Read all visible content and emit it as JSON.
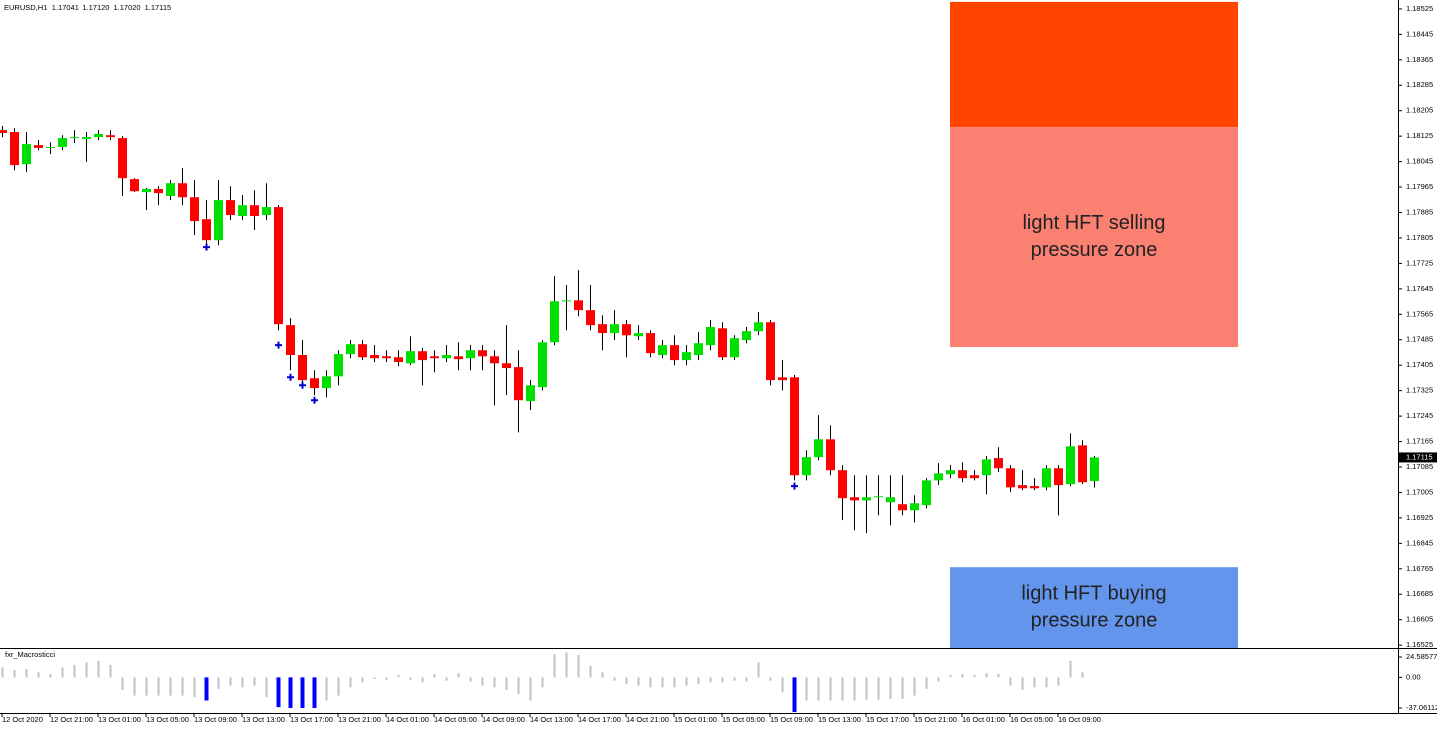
{
  "chart_data": [
    {
      "type": "candlestick",
      "header": {
        "symbol": "EURUSD,H1",
        "ohlc_labels": [
          "1.17041",
          "1.17120",
          "1.17020",
          "1.17115"
        ]
      },
      "categories": [
        "12 Oct 2020",
        null,
        null,
        null,
        "12 Oct 21:00",
        null,
        null,
        null,
        "13 Oct 01:00",
        null,
        null,
        null,
        "13 Oct 05:00",
        null,
        null,
        null,
        "13 Oct 09:00",
        null,
        null,
        null,
        "13 Oct 13:00",
        null,
        null,
        null,
        "13 Oct 17:00",
        null,
        null,
        null,
        "13 Oct 21:00",
        null,
        null,
        null,
        "14 Oct 01:00",
        null,
        null,
        null,
        "14 Oct 05:00",
        null,
        null,
        null,
        "14 Oct 09:00",
        null,
        null,
        null,
        "14 Oct 13:00",
        null,
        null,
        null,
        "14 Oct 17:00",
        null,
        null,
        null,
        "14 Oct 21:00",
        null,
        null,
        null,
        "15 Oct 01:00",
        null,
        null,
        null,
        "15 Oct 05:00",
        null,
        null,
        null,
        "15 Oct 09:00",
        null,
        null,
        null,
        "15 Oct 13:00",
        null,
        null,
        null,
        "15 Oct 17:00",
        null,
        null,
        null,
        "15 Oct 21:00",
        null,
        null,
        null,
        "16 Oct 01:00",
        null,
        null,
        null,
        "16 Oct 05:00",
        null,
        null,
        null,
        "16 Oct 09:00",
        null,
        null,
        null
      ],
      "open": [
        1.18144,
        1.18138,
        1.18037,
        1.18097,
        1.18088,
        1.18091,
        1.18119,
        1.18116,
        1.18122,
        1.18128,
        1.18119,
        1.1799,
        1.17949,
        1.17959,
        1.17937,
        1.17977,
        1.17933,
        1.17864,
        1.17798,
        1.17924,
        1.17874,
        1.17908,
        1.17877,
        1.17902,
        1.17531,
        1.17437,
        1.17364,
        1.17333,
        1.1737,
        1.1744,
        1.17471,
        1.17437,
        1.17433,
        1.1743,
        1.17411,
        1.17449,
        1.17433,
        1.17427,
        1.17433,
        1.17427,
        1.17452,
        1.17433,
        1.17411,
        1.17399,
        1.17292,
        1.17336,
        1.17477,
        1.17606,
        1.17609,
        1.17578,
        1.17534,
        1.17506,
        1.17534,
        1.17496,
        1.17506,
        1.17437,
        1.17468,
        1.17421,
        1.17437,
        1.17468,
        1.17521,
        1.1743,
        1.17484,
        1.17512,
        1.1754,
        1.17367,
        1.17367,
        1.17059,
        1.17116,
        1.17172,
        1.17075,
        1.1699,
        1.1698,
        1.1699,
        1.16974,
        1.16968,
        1.16949,
        1.16965,
        1.17043,
        1.17062,
        1.17075,
        1.17059,
        1.17059,
        1.17113,
        1.17081,
        1.17028,
        1.17025,
        1.17021,
        1.17081,
        1.17031,
        1.17153,
        1.17041
      ],
      "high": [
        1.18157,
        1.1815,
        1.18138,
        1.18113,
        1.18106,
        1.18128,
        1.18144,
        1.18138,
        1.18144,
        1.18144,
        1.18125,
        1.17993,
        1.17962,
        1.17968,
        1.17987,
        1.18025,
        1.17987,
        1.17924,
        1.17987,
        1.17968,
        1.1794,
        1.17955,
        1.17977,
        1.17908,
        1.17553,
        1.17484,
        1.17389,
        1.17389,
        1.17452,
        1.17484,
        1.17484,
        1.17468,
        1.17452,
        1.17452,
        1.17496,
        1.17459,
        1.17452,
        1.17468,
        1.17477,
        1.17468,
        1.17468,
        1.17452,
        1.17531,
        1.17452,
        1.17358,
        1.17484,
        1.17685,
        1.17657,
        1.17704,
        1.17657,
        1.17562,
        1.17578,
        1.17547,
        1.17531,
        1.17515,
        1.17484,
        1.17499,
        1.17468,
        1.17509,
        1.17547,
        1.1754,
        1.17499,
        1.17525,
        1.17572,
        1.17547,
        1.17421,
        1.17374,
        1.17138,
        1.17248,
        1.17216,
        1.17091,
        1.17059,
        1.17059,
        1.17059,
        1.17059,
        1.17059,
        1.16996,
        1.1705,
        1.17097,
        1.17091,
        1.171,
        1.17075,
        1.17119,
        1.17147,
        1.17091,
        1.17075,
        1.1705,
        1.17091,
        1.17091,
        1.17191,
        1.17169,
        1.1712
      ],
      "low": [
        1.18122,
        1.18018,
        1.18012,
        1.18081,
        1.18069,
        1.18081,
        1.18103,
        1.18044,
        1.18113,
        1.18113,
        1.17937,
        1.17949,
        1.17893,
        1.17908,
        1.17924,
        1.17908,
        1.17814,
        1.17782,
        1.17782,
        1.17861,
        1.17861,
        1.1783,
        1.17861,
        1.17515,
        1.17389,
        1.17342,
        1.17311,
        1.17304,
        1.17342,
        1.17427,
        1.17421,
        1.17415,
        1.17415,
        1.17402,
        1.17405,
        1.17342,
        1.17383,
        1.17415,
        1.17389,
        1.17389,
        1.17389,
        1.17279,
        1.17311,
        1.17194,
        1.17264,
        1.17326,
        1.17468,
        1.17515,
        1.17559,
        1.17515,
        1.17452,
        1.17484,
        1.1743,
        1.17484,
        1.1743,
        1.17427,
        1.17405,
        1.17405,
        1.17421,
        1.17452,
        1.17421,
        1.17421,
        1.17474,
        1.17499,
        1.17342,
        1.17326,
        1.17043,
        1.17043,
        1.17106,
        1.17059,
        1.16918,
        1.16886,
        1.16877,
        1.16933,
        1.16902,
        1.16933,
        1.16911,
        1.16955,
        1.17028,
        1.1705,
        1.17037,
        1.17043,
        1.16999,
        1.17069,
        1.17006,
        1.17012,
        1.17012,
        1.17012,
        1.16933,
        1.17025,
        1.17031,
        1.1702
      ],
      "close": [
        1.18135,
        1.18034,
        1.181,
        1.18088,
        1.18091,
        1.18119,
        1.18122,
        1.18122,
        1.18132,
        1.18122,
        1.17993,
        1.17952,
        1.17959,
        1.17946,
        1.17977,
        1.17933,
        1.17858,
        1.17798,
        1.17924,
        1.17877,
        1.17908,
        1.17874,
        1.17902,
        1.17534,
        1.17437,
        1.17358,
        1.17333,
        1.1737,
        1.1744,
        1.17471,
        1.1743,
        1.17427,
        1.17427,
        1.17415,
        1.17449,
        1.17421,
        1.17427,
        1.17437,
        1.17424,
        1.17452,
        1.17433,
        1.17411,
        1.17396,
        1.17295,
        1.17342,
        1.17477,
        1.17606,
        1.17609,
        1.17578,
        1.17531,
        1.17506,
        1.17534,
        1.17499,
        1.17506,
        1.17443,
        1.17468,
        1.17421,
        1.17446,
        1.17474,
        1.17525,
        1.1743,
        1.1749,
        1.17512,
        1.1754,
        1.17358,
        1.17358,
        1.17059,
        1.17116,
        1.17172,
        1.17075,
        1.16987,
        1.1698,
        1.1699,
        1.16993,
        1.1699,
        1.16949,
        1.16971,
        1.17043,
        1.17065,
        1.17075,
        1.1705,
        1.1705,
        1.17109,
        1.17081,
        1.17021,
        1.17018,
        1.17018,
        1.17081,
        1.17028,
        1.1715,
        1.17037,
        1.17115
      ],
      "up_color": "#00e000",
      "down_color": "#ff0000",
      "wick_color": "#000000",
      "markers": {
        "color": "#0000cd",
        "indices": [
          17,
          23,
          24,
          25,
          26,
          66
        ],
        "values": [
          1.17776,
          1.17468,
          1.17367,
          1.17342,
          1.17295,
          1.17025
        ]
      },
      "zones": [
        {
          "color": "#ff4500",
          "from": 1.18153,
          "to": 1.18547
        },
        {
          "color": "#fa8072",
          "from": 1.17462,
          "to": 1.18153,
          "label_lines": [
            "light HFT selling",
            "pressure zone"
          ]
        },
        {
          "color": "#6495ed",
          "from": 1.16516,
          "to": 1.1677,
          "label_lines": [
            "light HFT buying",
            "pressure zone"
          ]
        }
      ],
      "ylim": [
        1.16516,
        1.18553
      ],
      "yticks": [
        1.18525,
        1.18445,
        1.18365,
        1.18285,
        1.18205,
        1.18125,
        1.18045,
        1.17965,
        1.17885,
        1.17805,
        1.17725,
        1.17645,
        1.17565,
        1.17485,
        1.17405,
        1.17325,
        1.17245,
        1.17165,
        1.17085,
        1.17005,
        1.16925,
        1.16845,
        1.16765,
        1.16685,
        1.16605,
        1.16525
      ],
      "grid": false
    },
    {
      "type": "bar",
      "title": "fxr_Macrosticci",
      "values": [
        12,
        9,
        10,
        6,
        4,
        12,
        15,
        18,
        20,
        15,
        -15,
        -22,
        -22,
        -22,
        -22,
        -22,
        -24,
        -28,
        -14,
        -10,
        -12,
        -10,
        -24,
        -36,
        -37,
        -37,
        -37,
        -28,
        -22,
        -12,
        -6,
        -2,
        -3,
        3,
        -3,
        -6,
        4,
        -4,
        5,
        -5,
        -10,
        -12,
        -15,
        -20,
        -28,
        -12,
        28,
        30,
        27,
        14,
        6,
        -4,
        -8,
        -10,
        -12,
        -12,
        -12,
        -10,
        -8,
        -6,
        -6,
        -4,
        -5,
        18,
        -4,
        -18,
        -42,
        -28,
        -28,
        -28,
        -28,
        -28,
        -27,
        -27,
        -26,
        -26,
        -22,
        -14,
        -5,
        3,
        4,
        3,
        5,
        4,
        -10,
        -15,
        -12,
        -12,
        -10,
        20,
        6,
        null
      ],
      "color": "#c0c0c0",
      "highlight_color": "#0000ff",
      "highlight_indices": [
        17,
        23,
        24,
        25,
        26,
        66
      ],
      "ylim": [
        -43.1,
        34.3
      ],
      "yticks": [
        24.58577,
        {
          "value": 0,
          "label": "0.00"
        },
        -37.06112
      ],
      "grid": false
    }
  ]
}
